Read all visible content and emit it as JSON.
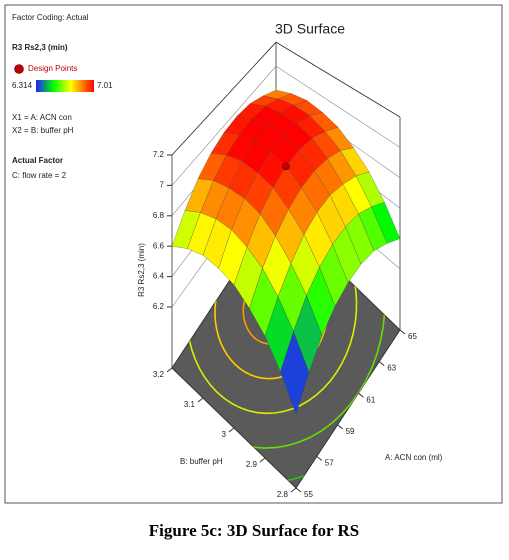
{
  "chart_data": {
    "type": "surface3d",
    "title": "3D Surface",
    "factor_coding": "Factor Coding: Actual",
    "response": "R3 Rs2,3 (min)",
    "design_points_label": "Design Points",
    "design_point_color": "#c00000",
    "colorbar": {
      "min": 6.314,
      "max": 7.01
    },
    "x1_legend": "X1 = A: ACN con",
    "x2_legend": "X2 = B: buffer pH",
    "actual_factor_heading": "Actual Factor",
    "actual_factor": "C: flow rate = 2",
    "xlabel": "A: ACN con (ml)",
    "ylabel": "B: buffer pH",
    "zlabel": "R3 Rs2,3 (min)",
    "xlim": [
      55,
      65
    ],
    "ylim": [
      2.8,
      3.2
    ],
    "zlim": [
      6.2,
      7.2
    ],
    "xticks": [
      55,
      57,
      59,
      61,
      63,
      65
    ],
    "yticks": [
      2.8,
      2.9,
      3,
      3.1,
      3.2
    ],
    "zticks": [
      6.2,
      6.4,
      6.6,
      6.8,
      7,
      7.2
    ],
    "x": [
      55,
      56.25,
      57.5,
      58.75,
      60,
      61.25,
      62.5,
      63.75,
      65
    ],
    "y": [
      2.8,
      2.85,
      2.9,
      2.95,
      3,
      3.05,
      3.1,
      3.15,
      3.2
    ],
    "z": [
      [
        6.2,
        6.33,
        6.44,
        6.51,
        6.55,
        6.56,
        6.54,
        6.48,
        6.4
      ],
      [
        6.36,
        6.49,
        6.6,
        6.67,
        6.71,
        6.72,
        6.7,
        6.64,
        6.56
      ],
      [
        6.49,
        6.62,
        6.72,
        6.8,
        6.84,
        6.85,
        6.82,
        6.77,
        6.69
      ],
      [
        6.58,
        6.72,
        6.82,
        6.89,
        6.93,
        6.94,
        6.92,
        6.87,
        6.78
      ],
      [
        6.65,
        6.78,
        6.89,
        6.96,
        7.0,
        7.01,
        6.99,
        6.93,
        6.85
      ],
      [
        6.68,
        6.82,
        6.92,
        6.99,
        7.03,
        7.04,
        7.02,
        6.97,
        6.88
      ],
      [
        6.69,
        6.82,
        6.92,
        7.0,
        7.04,
        7.05,
        7.02,
        6.97,
        6.89
      ],
      [
        6.66,
        6.79,
        6.9,
        6.97,
        7.01,
        7.02,
        7.0,
        6.94,
        6.86
      ],
      [
        6.6,
        6.73,
        6.84,
        6.91,
        6.95,
        6.96,
        6.94,
        6.88,
        6.8
      ]
    ],
    "design_point": {
      "x": 60,
      "y": 3,
      "z": 7.0
    }
  },
  "caption": "Figure 5c: 3D Surface for RS"
}
